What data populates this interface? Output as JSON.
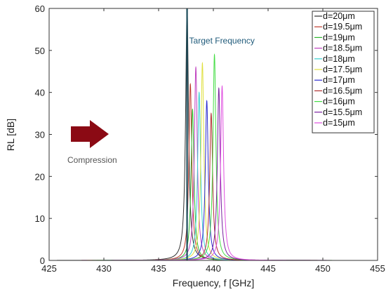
{
  "chart_data": {
    "type": "line",
    "xlabel": "Frequency, f [GHz]",
    "ylabel": "RL [dB]",
    "xlim": [
      425,
      455
    ],
    "ylim": [
      0,
      60
    ],
    "xticks": [
      425,
      430,
      435,
      440,
      445,
      450,
      455
    ],
    "yticks": [
      0,
      10,
      20,
      30,
      40,
      50,
      60
    ],
    "grid": false,
    "legend_position": "top-right",
    "series": [
      {
        "name": "d=20μm",
        "color": "#2e2e2e",
        "peak_x": 437.6,
        "peak_y": 60.0
      },
      {
        "name": "d=19.5μm",
        "color": "#c0392b",
        "peak_x": 437.9,
        "peak_y": 42.0
      },
      {
        "name": "d=19μm",
        "color": "#2fb82f",
        "peak_x": 438.1,
        "peak_y": 36.0
      },
      {
        "name": "d=18.5μm",
        "color": "#c040c0",
        "peak_x": 438.4,
        "peak_y": 46.0
      },
      {
        "name": "d=18μm",
        "color": "#35d0d0",
        "peak_x": 438.7,
        "peak_y": 40.0
      },
      {
        "name": "d=17.5μm",
        "color": "#e0e040",
        "peak_x": 439.0,
        "peak_y": 47.0
      },
      {
        "name": "d=17μm",
        "color": "#2a2ad0",
        "peak_x": 439.4,
        "peak_y": 38.0
      },
      {
        "name": "d=16.5μm",
        "color": "#b03030",
        "peak_x": 439.8,
        "peak_y": 35.0
      },
      {
        "name": "d=16μm",
        "color": "#44dd44",
        "peak_x": 440.1,
        "peak_y": 49.0
      },
      {
        "name": "d=15.5μm",
        "color": "#7a1fa0",
        "peak_x": 440.5,
        "peak_y": 41.0
      },
      {
        "name": "d=15μm",
        "color": "#e050e0",
        "peak_x": 440.8,
        "peak_y": 41.5
      }
    ],
    "target_line": {
      "x": 437.6,
      "label": "Target Frequency",
      "color": "#1d4d5c"
    },
    "annotation": {
      "label": "Compression",
      "arrow_color": "#8b0a14"
    }
  }
}
